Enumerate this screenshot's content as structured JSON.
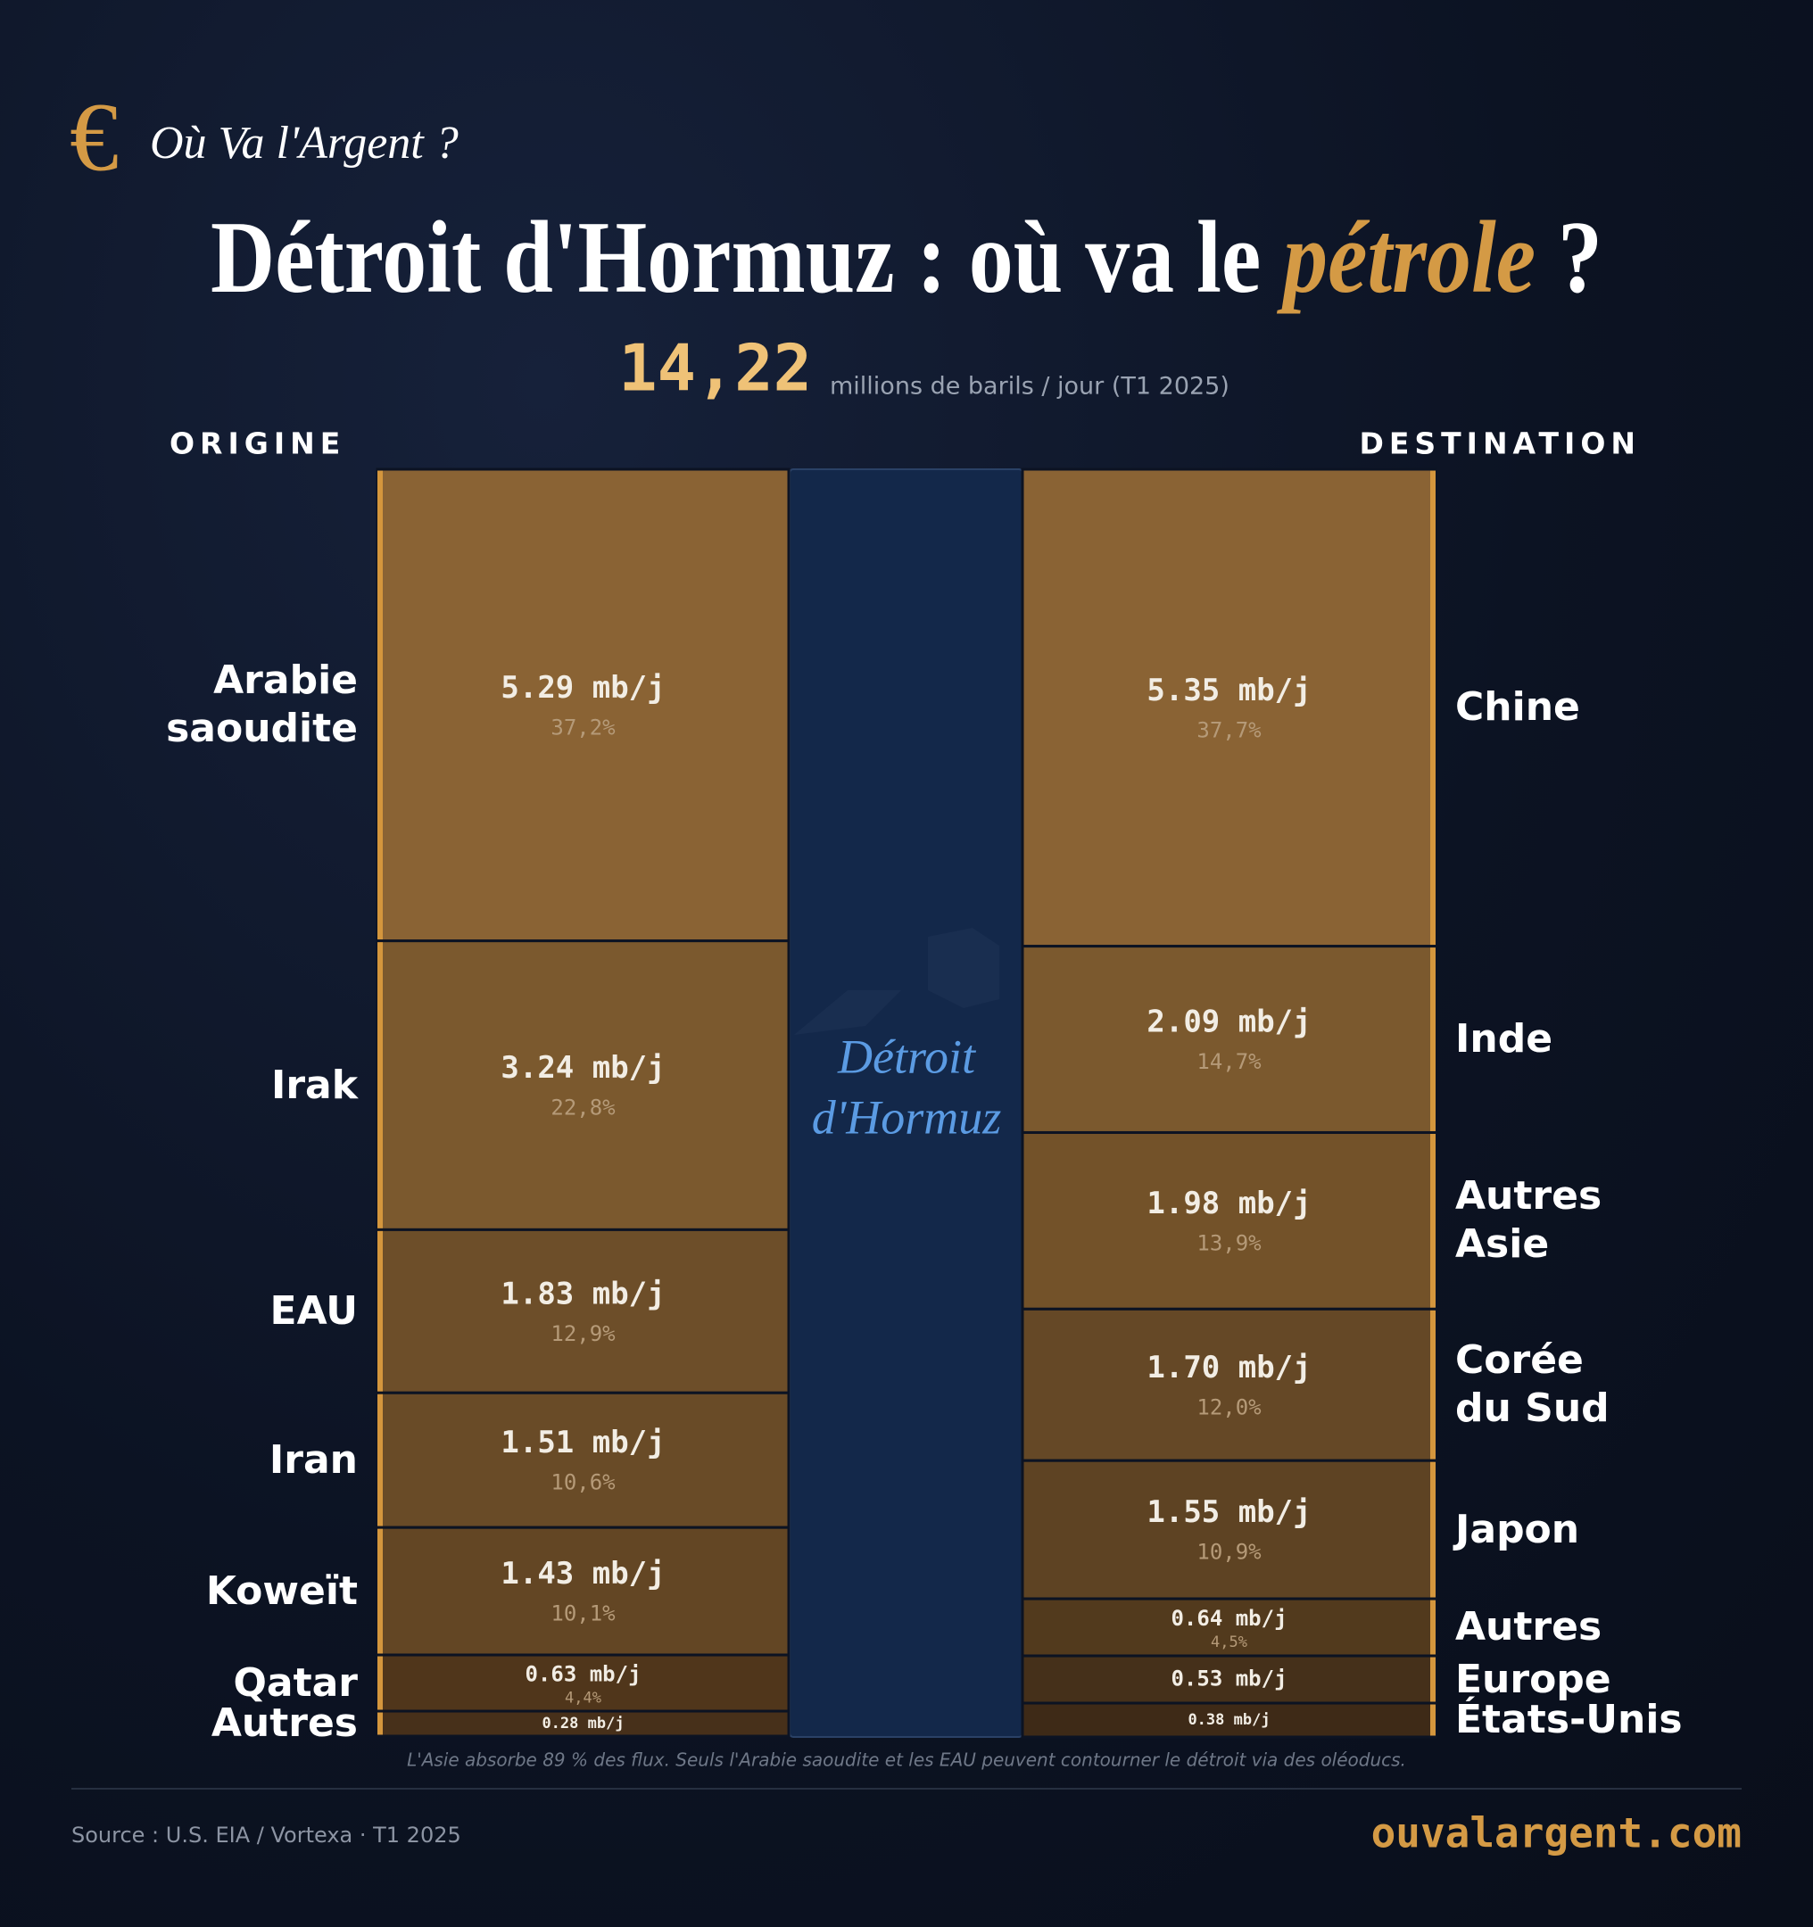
{
  "chart_data": {
    "type": "sankey",
    "brand": "Où Va l'Argent ?",
    "brand_symbol": "€",
    "title": "Détroit d'Hormuz : où va le",
    "title_highlight": "pétrole",
    "title_end": " ?",
    "total": 14.22,
    "total_label": "14,22",
    "total_unit": "millions de barils / jour (T1 2025)",
    "origin_header": "ORIGINE",
    "destination_header": "DESTINATION",
    "strait_label": [
      "Détroit",
      "d'Hormuz"
    ],
    "origins": {
      "names": [
        "Arabie\nsaoudite",
        "Irak",
        "EAU",
        "Iran",
        "Koweït",
        "Qatar",
        "Autres"
      ],
      "values": [
        5.29,
        3.24,
        1.83,
        1.51,
        1.43,
        0.63,
        0.28
      ],
      "value_labels": [
        "5.29 mb/j",
        "3.24 mb/j",
        "1.83 mb/j",
        "1.51 mb/j",
        "1.43 mb/j",
        "0.63 mb/j",
        "0.28 mb/j"
      ],
      "percent_labels": [
        "37,2%",
        "22,8%",
        "12,9%",
        "10,6%",
        "10,1%",
        "4,4%",
        null
      ],
      "colors": [
        "#8a6334",
        "#7b592e",
        "#6d4e29",
        "#694b27",
        "#634624",
        "#50361b",
        "#47301a"
      ]
    },
    "destinations": {
      "names": [
        "Chine",
        "Inde",
        "Autres\nAsie",
        "Corée\ndu Sud",
        "Japon",
        "Autres",
        "Europe",
        "États-Unis"
      ],
      "values": [
        5.35,
        2.09,
        1.98,
        1.7,
        1.55,
        0.64,
        0.53,
        0.38
      ],
      "value_labels": [
        "5.35 mb/j",
        "2.09 mb/j",
        "1.98 mb/j",
        "1.70 mb/j",
        "1.55 mb/j",
        "0.64 mb/j",
        "0.53 mb/j",
        "0.38 mb/j"
      ],
      "percent_labels": [
        "37,7%",
        "14,7%",
        "13,9%",
        "12,0%",
        "10,9%",
        "4,5%",
        null,
        null
      ],
      "colors": [
        "#8a6334",
        "#7b592e",
        "#735229",
        "#654826",
        "#5e4323",
        "#523a1d",
        "#45301a",
        "#3e2a17"
      ]
    },
    "note": "L'Asie absorbe 89 % des flux. Seuls l'Arabie saoudite et les EAU peuvent contourner le détroit via des oléoducs.",
    "source": "Source : U.S. EIA / Vortexa · T1 2025",
    "website": "ouvalargent.com"
  }
}
